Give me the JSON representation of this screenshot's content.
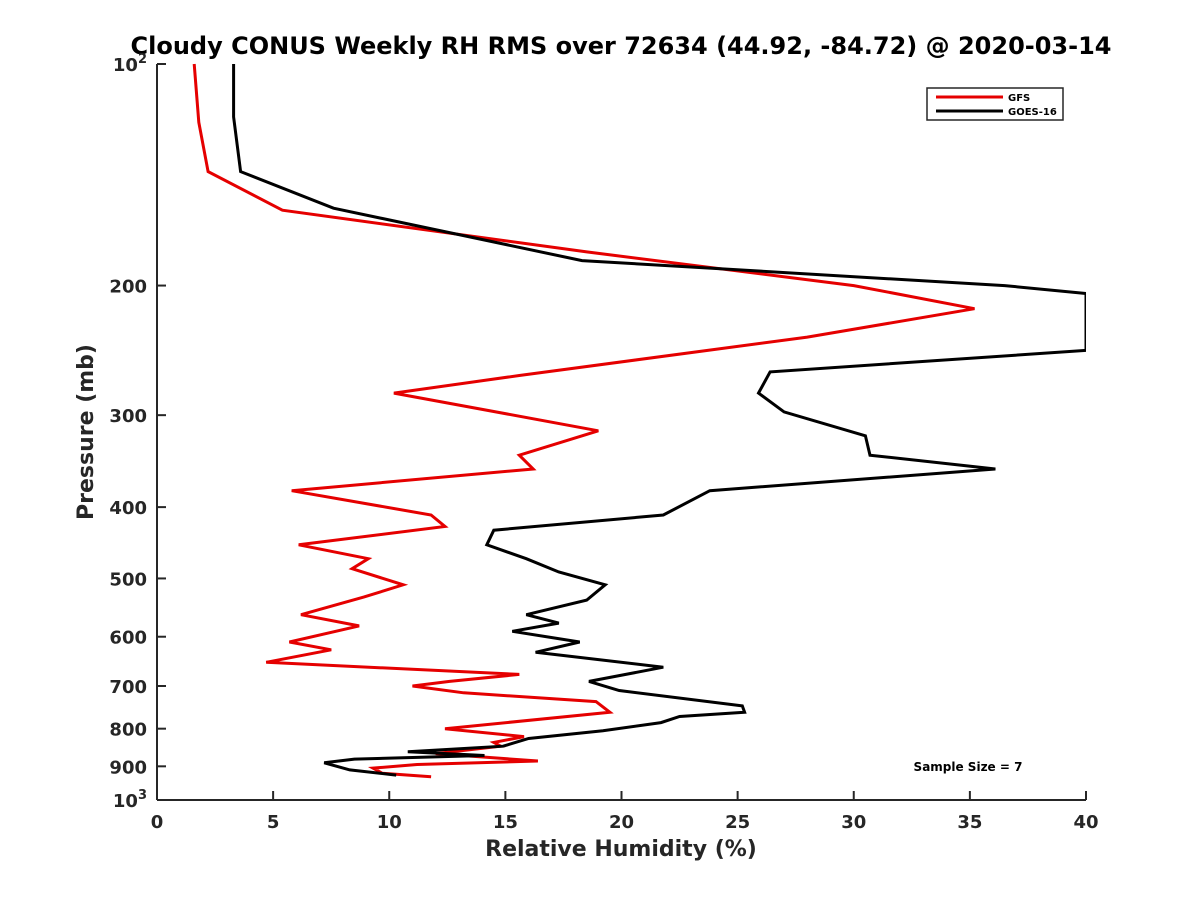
{
  "chart_data": {
    "type": "line",
    "title": "Cloudy CONUS Weekly RH RMS over 72634 (44.92, -84.72) @ 2020-03-14",
    "xlabel": "Relative Humidity (%)",
    "ylabel": "Pressure (mb)",
    "xlim": [
      0,
      40
    ],
    "ylim": [
      100,
      1000
    ],
    "y_scale": "log",
    "y_reversed": true,
    "grid": false,
    "legend_position": "top-right",
    "x_ticks": [
      "0",
      "5",
      "10",
      "15",
      "20",
      "25",
      "30",
      "35",
      "40"
    ],
    "y_ticks": [
      {
        "value": 100,
        "base": "10",
        "exp": "2"
      },
      {
        "value": 200,
        "label": "200"
      },
      {
        "value": 300,
        "label": "300"
      },
      {
        "value": 400,
        "label": "400"
      },
      {
        "value": 500,
        "label": "500"
      },
      {
        "value": 600,
        "label": "600"
      },
      {
        "value": 700,
        "label": "700"
      },
      {
        "value": 800,
        "label": "800"
      },
      {
        "value": 900,
        "label": "900"
      },
      {
        "value": 1000,
        "base": "10",
        "exp": "3"
      }
    ],
    "series": [
      {
        "name": "GFS",
        "color": "#e50000",
        "points": [
          [
            1.6,
            100
          ],
          [
            1.8,
            120
          ],
          [
            2.2,
            140
          ],
          [
            5.4,
            158
          ],
          [
            18.5,
            180
          ],
          [
            30,
            200
          ],
          [
            35.2,
            215
          ],
          [
            28,
            235
          ],
          [
            15.6,
            265
          ],
          [
            10.2,
            280
          ],
          [
            19,
            315
          ],
          [
            15.6,
            340
          ],
          [
            16.2,
            355
          ],
          [
            5.8,
            380
          ],
          [
            11.8,
            410
          ],
          [
            12.4,
            425
          ],
          [
            6.1,
            450
          ],
          [
            9.1,
            470
          ],
          [
            8.4,
            485
          ],
          [
            10.6,
            510
          ],
          [
            8.9,
            530
          ],
          [
            6.2,
            560
          ],
          [
            8.7,
            580
          ],
          [
            5.7,
            610
          ],
          [
            7.5,
            625
          ],
          [
            4.7,
            650
          ],
          [
            15.6,
            675
          ],
          [
            12.6,
            690
          ],
          [
            11,
            700
          ],
          [
            13.2,
            715
          ],
          [
            18.9,
            735
          ],
          [
            19.5,
            760
          ],
          [
            12.4,
            800
          ],
          [
            15.8,
            820
          ],
          [
            14.5,
            835
          ],
          [
            14.8,
            845
          ],
          [
            12,
            865
          ],
          [
            16.4,
            885
          ],
          [
            11.2,
            895
          ],
          [
            9.3,
            905
          ],
          [
            9.7,
            920
          ],
          [
            11.8,
            930
          ]
        ]
      },
      {
        "name": "GOES-16",
        "color": "#000000",
        "points": [
          [
            3.3,
            100
          ],
          [
            3.3,
            118
          ],
          [
            3.6,
            140
          ],
          [
            7.6,
            157
          ],
          [
            18.3,
            185
          ],
          [
            36.5,
            200
          ],
          [
            40,
            205
          ],
          [
            40,
            245
          ],
          [
            26.4,
            262
          ],
          [
            25.9,
            280
          ],
          [
            27,
            297
          ],
          [
            30.5,
            320
          ],
          [
            30.7,
            340
          ],
          [
            36.1,
            355
          ],
          [
            23.8,
            380
          ],
          [
            21.8,
            410
          ],
          [
            14.5,
            430
          ],
          [
            14.2,
            450
          ],
          [
            15.9,
            470
          ],
          [
            17.3,
            490
          ],
          [
            19.3,
            510
          ],
          [
            18.5,
            535
          ],
          [
            15.9,
            560
          ],
          [
            17.3,
            575
          ],
          [
            15.3,
            590
          ],
          [
            18.2,
            610
          ],
          [
            16.3,
            630
          ],
          [
            21.8,
            660
          ],
          [
            18.6,
            690
          ],
          [
            19.9,
            710
          ],
          [
            25.2,
            745
          ],
          [
            25.3,
            760
          ],
          [
            22.5,
            770
          ],
          [
            21.7,
            785
          ],
          [
            19.2,
            805
          ],
          [
            16,
            825
          ],
          [
            14.9,
            845
          ],
          [
            10.8,
            860
          ],
          [
            14.1,
            870
          ],
          [
            8.5,
            880
          ],
          [
            7.2,
            890
          ],
          [
            8.3,
            910
          ],
          [
            10.3,
            925
          ]
        ]
      }
    ],
    "annotation": "Sample Size = 7"
  }
}
